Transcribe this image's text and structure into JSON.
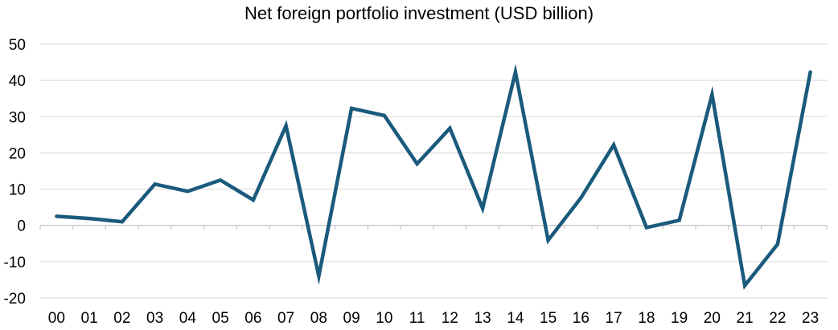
{
  "chart_data": {
    "type": "line",
    "title": "Net foreign portfolio investment (USD billion)",
    "xlabel": "",
    "ylabel": "",
    "categories": [
      "00",
      "01",
      "02",
      "03",
      "04",
      "05",
      "06",
      "07",
      "08",
      "09",
      "10",
      "11",
      "12",
      "13",
      "14",
      "15",
      "16",
      "17",
      "18",
      "19",
      "20",
      "21",
      "22",
      "23"
    ],
    "series": [
      {
        "name": "Net foreign portfolio investment",
        "values": [
          2.5,
          1.9,
          1.0,
          11.4,
          9.4,
          12.5,
          7.0,
          27.5,
          -14.0,
          32.3,
          30.3,
          17.0,
          26.8,
          4.7,
          42.3,
          -4.1,
          7.6,
          22.2,
          -0.6,
          1.4,
          36.1,
          -16.6,
          -5.2,
          42.3
        ],
        "color": "#1a5a7c"
      }
    ],
    "ylim": [
      -20,
      50
    ],
    "yticks": [
      -20,
      -10,
      0,
      10,
      20,
      30,
      40,
      50
    ],
    "grid": true,
    "legend": "none"
  }
}
